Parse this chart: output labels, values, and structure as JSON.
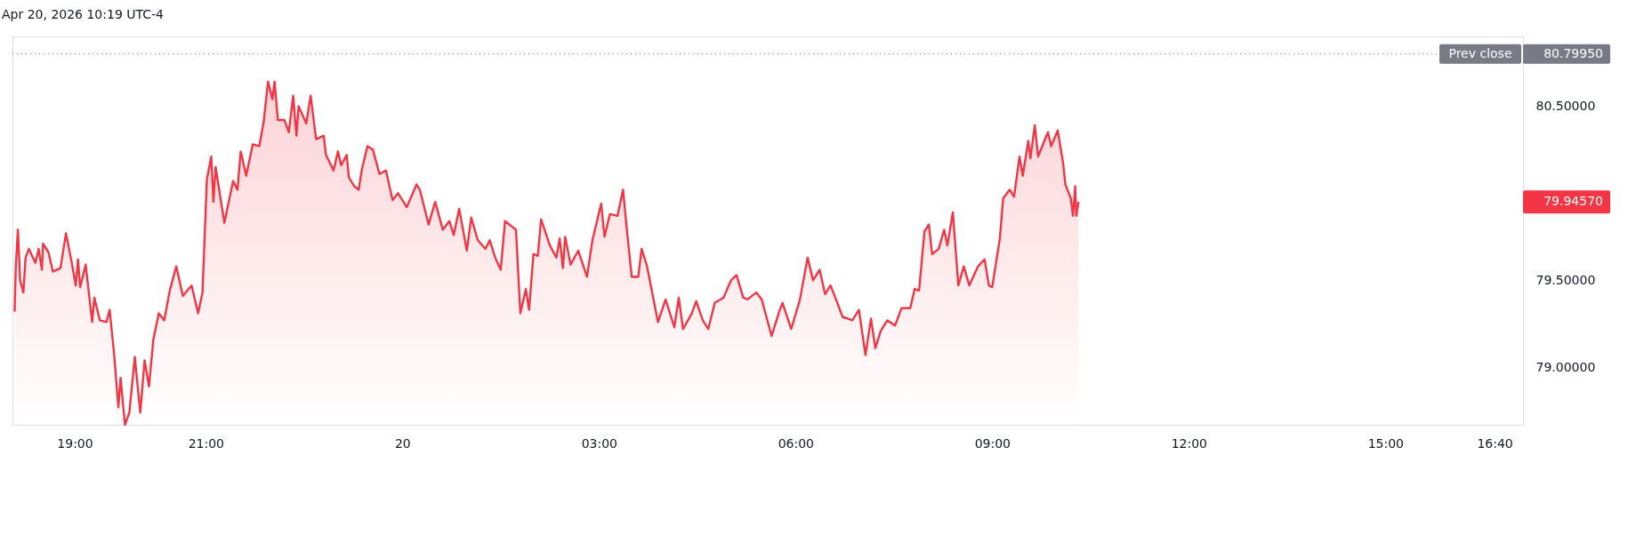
{
  "chart_data": {
    "type": "area",
    "title": "Apr 20, 2026 10:19 UTC-4",
    "x": [
      "2026-04-19T18:05",
      "2026-04-19T18:06",
      "2026-04-19T18:08",
      "2026-04-19T18:10",
      "2026-04-19T18:13",
      "2026-04-19T18:15",
      "2026-04-19T18:18",
      "2026-04-19T18:24",
      "2026-04-19T18:27",
      "2026-04-19T18:30",
      "2026-04-19T18:31",
      "2026-04-19T18:36",
      "2026-04-19T18:40",
      "2026-04-19T18:47",
      "2026-04-19T18:52",
      "2026-04-19T18:57",
      "2026-04-19T19:01",
      "2026-04-19T19:03",
      "2026-04-19T19:05",
      "2026-04-19T19:10",
      "2026-04-19T19:16",
      "2026-04-19T19:18",
      "2026-04-19T19:23",
      "2026-04-19T19:29",
      "2026-04-19T19:32",
      "2026-04-19T19:36",
      "2026-04-19T19:40",
      "2026-04-19T19:42",
      "2026-04-19T19:46",
      "2026-04-19T19:50",
      "2026-04-19T19:55",
      "2026-04-19T20:00",
      "2026-04-19T20:04",
      "2026-04-19T20:08",
      "2026-04-19T20:12",
      "2026-04-19T20:17",
      "2026-04-19T20:22",
      "2026-04-19T20:27",
      "2026-04-19T20:33",
      "2026-04-19T20:39",
      "2026-04-19T20:47",
      "2026-04-19T20:53",
      "2026-04-19T20:57",
      "2026-04-19T21:01",
      "2026-04-19T21:05",
      "2026-04-19T21:07",
      "2026-04-19T21:09",
      "2026-04-19T21:17",
      "2026-04-19T21:25",
      "2026-04-19T21:29",
      "2026-04-19T21:32",
      "2026-04-19T21:37",
      "2026-04-19T21:43",
      "2026-04-19T21:49",
      "2026-04-19T21:53",
      "2026-04-19T21:57",
      "2026-04-19T22:01",
      "2026-04-19T22:03",
      "2026-04-19T22:06",
      "2026-04-19T22:12",
      "2026-04-19T22:16",
      "2026-04-19T22:20",
      "2026-04-19T22:23",
      "2026-04-19T22:25",
      "2026-04-19T22:32",
      "2026-04-19T22:36",
      "2026-04-19T22:41",
      "2026-04-19T22:48",
      "2026-04-19T22:50",
      "2026-04-19T22:57",
      "2026-04-19T23:01",
      "2026-04-19T23:04",
      "2026-04-19T23:09",
      "2026-04-19T23:11",
      "2026-04-19T23:16",
      "2026-04-19T23:20",
      "2026-04-19T23:23",
      "2026-04-19T23:28",
      "2026-04-19T23:33",
      "2026-04-19T23:39",
      "2026-04-19T23:45",
      "2026-04-19T23:51",
      "2026-04-19T23:56",
      "2026-04-20T00:04",
      "2026-04-20T00:13",
      "2026-04-20T00:16",
      "2026-04-20T00:24",
      "2026-04-20T00:30",
      "2026-04-20T00:37",
      "2026-04-20T00:43",
      "2026-04-20T00:47",
      "2026-04-20T00:52",
      "2026-04-20T00:59",
      "2026-04-20T01:03",
      "2026-04-20T01:09",
      "2026-04-20T01:16",
      "2026-04-20T01:20",
      "2026-04-20T01:25",
      "2026-04-20T01:30",
      "2026-04-20T01:34",
      "2026-04-20T01:40",
      "2026-04-20T01:44",
      "2026-04-20T01:48",
      "2026-04-20T01:53",
      "2026-04-20T01:56",
      "2026-04-20T02:00",
      "2026-04-20T02:04",
      "2026-04-20T02:07",
      "2026-04-20T02:15",
      "2026-04-20T02:21",
      "2026-04-20T02:24",
      "2026-04-20T02:27",
      "2026-04-20T02:29",
      "2026-04-20T02:34",
      "2026-04-20T02:41",
      "2026-04-20T02:49",
      "2026-04-20T02:54",
      "2026-04-20T03:02",
      "2026-04-20T03:05",
      "2026-04-20T03:10",
      "2026-04-20T03:17",
      "2026-04-20T03:22",
      "2026-04-20T03:26",
      "2026-04-20T03:30",
      "2026-04-20T03:36",
      "2026-04-20T03:39",
      "2026-04-20T03:44",
      "2026-04-20T03:54",
      "2026-04-20T04:01",
      "2026-04-20T04:09",
      "2026-04-20T04:13",
      "2026-04-20T04:17",
      "2026-04-20T04:25",
      "2026-04-20T04:29",
      "2026-04-20T04:35",
      "2026-04-20T04:40",
      "2026-04-20T04:46",
      "2026-04-20T04:54",
      "2026-04-20T05:01",
      "2026-04-20T05:06",
      "2026-04-20T05:12",
      "2026-04-20T05:16",
      "2026-04-20T05:24",
      "2026-04-20T05:29",
      "2026-04-20T05:38",
      "2026-04-20T05:45",
      "2026-04-20T05:48",
      "2026-04-20T05:56",
      "2026-04-20T06:04",
      "2026-04-20T06:11",
      "2026-04-20T06:16",
      "2026-04-20T06:22",
      "2026-04-20T06:27",
      "2026-04-20T06:32",
      "2026-04-20T06:37",
      "2026-04-20T06:43",
      "2026-04-20T06:52",
      "2026-04-20T06:58",
      "2026-04-20T07:04",
      "2026-04-20T07:09",
      "2026-04-20T07:13",
      "2026-04-20T07:18",
      "2026-04-20T07:24",
      "2026-04-20T07:31",
      "2026-04-20T07:37",
      "2026-04-20T07:45",
      "2026-04-20T07:49",
      "2026-04-20T07:53",
      "2026-04-20T07:58",
      "2026-04-20T08:02",
      "2026-04-20T08:05",
      "2026-04-20T08:11",
      "2026-04-20T08:16",
      "2026-04-20T08:19",
      "2026-04-20T08:24",
      "2026-04-20T08:29",
      "2026-04-20T08:34",
      "2026-04-20T08:39",
      "2026-04-20T08:47",
      "2026-04-20T08:53",
      "2026-04-20T08:57",
      "2026-04-20T09:00",
      "2026-04-20T09:07",
      "2026-04-20T09:10",
      "2026-04-20T09:16",
      "2026-04-20T09:20",
      "2026-04-20T09:25",
      "2026-04-20T09:28",
      "2026-04-20T09:33",
      "2026-04-20T09:35",
      "2026-04-20T09:39",
      "2026-04-20T09:42",
      "2026-04-20T09:51",
      "2026-04-20T09:54",
      "2026-04-20T10:00",
      "2026-04-20T10:05",
      "2026-04-20T10:07",
      "2026-04-20T10:12",
      "2026-04-20T10:14",
      "2026-04-20T10:16",
      "2026-04-20T10:17",
      "2026-04-20T10:19"
    ],
    "series": [
      {
        "color": "#f23645",
        "values": [
          79.32,
          79.57,
          79.79,
          79.5,
          79.43,
          79.63,
          79.68,
          79.6,
          79.68,
          79.56,
          79.71,
          79.66,
          79.55,
          79.57,
          79.77,
          79.61,
          79.47,
          79.62,
          79.46,
          79.59,
          79.26,
          79.4,
          79.27,
          79.26,
          79.33,
          79.08,
          78.77,
          78.94,
          78.67,
          78.74,
          79.06,
          78.74,
          79.04,
          78.89,
          79.16,
          79.31,
          79.27,
          79.44,
          79.58,
          79.41,
          79.47,
          79.31,
          79.43,
          80.08,
          80.21,
          79.95,
          80.15,
          79.83,
          80.07,
          80.02,
          80.24,
          80.1,
          80.28,
          80.27,
          80.41,
          80.64,
          80.54,
          80.64,
          80.42,
          80.42,
          80.35,
          80.56,
          80.33,
          80.5,
          80.4,
          80.56,
          80.31,
          80.33,
          80.22,
          80.13,
          80.24,
          80.16,
          80.22,
          80.09,
          80.04,
          80.02,
          80.14,
          80.27,
          80.25,
          80.11,
          80.13,
          79.96,
          80.0,
          79.92,
          80.05,
          80.02,
          79.82,
          79.95,
          79.79,
          79.84,
          79.76,
          79.91,
          79.67,
          79.86,
          79.73,
          79.68,
          79.73,
          79.63,
          79.56,
          79.84,
          79.81,
          79.79,
          79.31,
          79.45,
          79.33,
          79.65,
          79.64,
          79.85,
          79.7,
          79.63,
          79.74,
          79.57,
          79.75,
          79.59,
          79.67,
          79.52,
          79.73,
          79.94,
          79.75,
          79.88,
          79.87,
          80.02,
          79.76,
          79.52,
          79.52,
          79.68,
          79.58,
          79.26,
          79.39,
          79.23,
          79.4,
          79.22,
          79.31,
          79.38,
          79.27,
          79.22,
          79.37,
          79.4,
          79.5,
          79.53,
          79.4,
          79.39,
          79.43,
          79.39,
          79.18,
          79.32,
          79.37,
          79.22,
          79.39,
          79.63,
          79.5,
          79.56,
          79.42,
          79.47,
          79.39,
          79.29,
          79.27,
          79.33,
          79.07,
          79.28,
          79.11,
          79.21,
          79.27,
          79.24,
          79.34,
          79.34,
          79.45,
          79.44,
          79.78,
          79.82,
          79.65,
          79.68,
          79.79,
          79.7,
          79.89,
          79.47,
          79.58,
          79.47,
          79.58,
          79.62,
          79.47,
          79.46,
          79.74,
          79.97,
          80.02,
          79.98,
          80.21,
          80.1,
          80.3,
          80.2,
          80.39,
          80.21,
          80.35,
          80.27,
          80.36,
          80.17,
          80.05,
          79.97,
          79.87,
          80.04,
          79.87,
          79.95
        ]
      }
    ],
    "xlim": [
      "2026-04-19T18:03",
      "2026-04-20T17:06"
    ],
    "xticks": [
      {
        "value": "2026-04-19T19:00",
        "label": "19:00"
      },
      {
        "value": "2026-04-19T21:00",
        "label": "21:00"
      },
      {
        "value": "2026-04-20T00:00",
        "label": "20"
      },
      {
        "value": "2026-04-20T03:00",
        "label": "03:00"
      },
      {
        "value": "2026-04-20T06:00",
        "label": "06:00"
      },
      {
        "value": "2026-04-20T09:00",
        "label": "09:00"
      },
      {
        "value": "2026-04-20T12:00",
        "label": "12:00"
      },
      {
        "value": "2026-04-20T15:00",
        "label": "15:00"
      },
      {
        "value": "2026-04-20T16:40",
        "label": "16:40"
      }
    ],
    "ylim": [
      78.67,
      80.9
    ],
    "yticks": [
      {
        "value": 79.0,
        "label": "79.00000"
      },
      {
        "value": 79.5,
        "label": "79.50000"
      },
      {
        "value": 80.5,
        "label": "80.50000"
      }
    ],
    "ref_lines": [
      {
        "axis": "y",
        "value": 80.7995,
        "label": "Prev close",
        "color": "#787b86",
        "line_style": "dotted"
      }
    ],
    "annotations": [
      "80.79950",
      "79.94570"
    ],
    "grid": false
  }
}
